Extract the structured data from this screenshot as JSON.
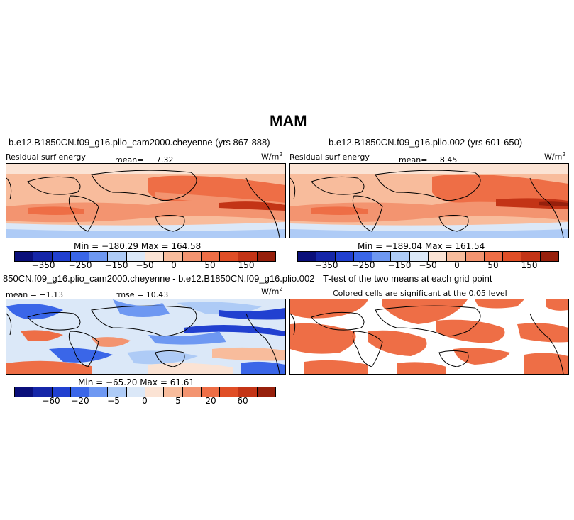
{
  "title": "MAM",
  "panel_tl": {
    "case": "b.e12.B1850CN.f09_g16.plio_cam2000.cheyenne (yrs 867-888)",
    "variable": "Residual surf energy",
    "mean_label": "mean=",
    "mean_value": "7.32",
    "units": "W/m",
    "units_exp": "2",
    "min_max": "Min = −180.29  Max = 164.58"
  },
  "panel_tr": {
    "case": "b.e12.B1850CN.f09_g16.plio.002 (yrs 601-650)",
    "variable": "Residual surf energy",
    "mean_label": "mean=",
    "mean_value": "8.45",
    "units": "W/m",
    "units_exp": "2",
    "min_max": "Min = −189.04  Max = 161.54"
  },
  "panel_bl": {
    "case": "850CN.f09_g16.plio_cam2000.cheyenne - b.e12.B1850CN.f09_g16.plio.002",
    "mean_text": "mean =  −1.13",
    "rmse_text": "rmse =  10.43",
    "units": "W/m",
    "units_exp": "2",
    "min_max": "Min = −65.20  Max = 61.61"
  },
  "panel_br": {
    "case": "T-test of the two means at each grid point",
    "note": "Colored cells are significant at the 0.05 level"
  },
  "colorbar_abs": {
    "colors": [
      "#0a0f7a",
      "#1526a8",
      "#2140d0",
      "#3a66e8",
      "#6e98f2",
      "#aecbf6",
      "#dbe8f8",
      "#fbe3d4",
      "#f8bc9c",
      "#f39470",
      "#ee6e46",
      "#e04e26",
      "#c33416",
      "#97200c"
    ],
    "ticks": [
      "−350",
      "−250",
      "−150",
      "−50",
      "0",
      "50",
      "150"
    ]
  },
  "colorbar_diff": {
    "colors": [
      "#0a0f7a",
      "#1526a8",
      "#2140d0",
      "#3a66e8",
      "#6e98f2",
      "#aecbf6",
      "#dbe8f8",
      "#fbe3d4",
      "#f8bc9c",
      "#f39470",
      "#ee6e46",
      "#e04e26",
      "#c33416",
      "#97200c"
    ],
    "ticks": [
      "−60",
      "−20",
      "−5",
      "0",
      "5",
      "20",
      "60"
    ]
  }
}
